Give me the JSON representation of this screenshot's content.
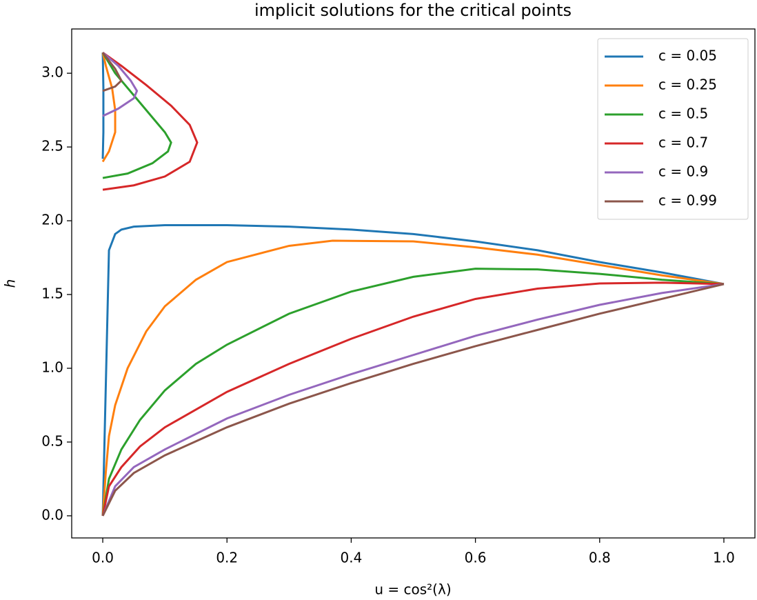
{
  "chart_data": {
    "type": "line",
    "title": "implicit solutions for the critical points",
    "x_label": "u = cos²(λ)",
    "y_label": "h",
    "xlim": [
      -0.05,
      1.05
    ],
    "ylim": [
      -0.15,
      3.3
    ],
    "xticks": [
      {
        "value": 0,
        "label": "0.0"
      },
      0.2,
      0.4,
      0.6,
      0.8,
      {
        "value": 1,
        "label": "1.0"
      }
    ],
    "yticks": [
      {
        "value": 0,
        "label": "0.0"
      },
      0.5,
      {
        "value": 1,
        "label": "1.0"
      },
      1.5,
      {
        "value": 2,
        "label": "2.0"
      },
      2.5,
      {
        "value": 3,
        "label": "3.0"
      }
    ],
    "grid": false,
    "legend": "upper right",
    "series": [
      {
        "name": "c = 0.05",
        "color": "#1f77b4",
        "x": [
          0,
          0.01,
          0.02,
          0.03,
          0.05,
          0.1,
          0.2,
          0.3,
          0.4,
          0.5,
          0.6,
          0.7,
          0.8,
          0.9,
          1.0,
          null,
          0,
          0.001,
          0.001,
          0
        ],
        "values": [
          0,
          1.8,
          1.91,
          1.94,
          1.96,
          1.97,
          1.97,
          1.96,
          1.94,
          1.91,
          1.86,
          1.8,
          1.72,
          1.65,
          1.571,
          null,
          3.14,
          2.9,
          2.6,
          2.42
        ]
      },
      {
        "name": "c = 0.25",
        "color": "#ff7f0e",
        "x": [
          0,
          0.005,
          0.01,
          0.02,
          0.04,
          0.07,
          0.1,
          0.15,
          0.2,
          0.3,
          0.37,
          0.5,
          0.6,
          0.7,
          0.8,
          0.9,
          1.0,
          null,
          0,
          0.01,
          0.02,
          0.02,
          0.015,
          0.005,
          0
        ],
        "values": [
          0,
          0.3,
          0.54,
          0.75,
          1.0,
          1.25,
          1.42,
          1.6,
          1.72,
          1.83,
          1.865,
          1.86,
          1.82,
          1.77,
          1.7,
          1.63,
          1.571,
          null,
          2.4,
          2.47,
          2.6,
          2.75,
          2.9,
          3.05,
          3.14
        ]
      },
      {
        "name": "c = 0.5",
        "color": "#2ca02c",
        "x": [
          0,
          0.01,
          0.03,
          0.06,
          0.1,
          0.15,
          0.2,
          0.3,
          0.4,
          0.5,
          0.6,
          0.7,
          0.8,
          0.9,
          1.0,
          null,
          0,
          0.04,
          0.08,
          0.105,
          0.11,
          0.1,
          0.08,
          0.05,
          0.02,
          0
        ],
        "values": [
          0,
          0.25,
          0.45,
          0.65,
          0.85,
          1.03,
          1.16,
          1.37,
          1.52,
          1.62,
          1.675,
          1.67,
          1.64,
          1.6,
          1.571,
          null,
          2.29,
          2.32,
          2.39,
          2.47,
          2.53,
          2.6,
          2.7,
          2.85,
          3.0,
          3.14
        ]
      },
      {
        "name": "c = 0.7",
        "color": "#d62728",
        "x": [
          0,
          0.01,
          0.03,
          0.06,
          0.1,
          0.2,
          0.3,
          0.4,
          0.5,
          0.6,
          0.7,
          0.8,
          0.9,
          1.0,
          null,
          0,
          0.05,
          0.1,
          0.14,
          0.152,
          0.14,
          0.11,
          0.07,
          0.03,
          0
        ],
        "values": [
          0,
          0.2,
          0.33,
          0.47,
          0.6,
          0.84,
          1.03,
          1.2,
          1.35,
          1.47,
          1.54,
          1.575,
          1.58,
          1.571,
          null,
          2.21,
          2.24,
          2.3,
          2.4,
          2.53,
          2.65,
          2.78,
          2.92,
          3.05,
          3.14
        ]
      },
      {
        "name": "c = 0.9",
        "color": "#9467bd",
        "x": [
          0,
          0.02,
          0.05,
          0.1,
          0.2,
          0.3,
          0.4,
          0.5,
          0.6,
          0.7,
          0.8,
          0.9,
          1.0,
          null,
          0,
          0.025,
          0.05,
          0.055,
          0.045,
          0.025,
          0
        ],
        "values": [
          0,
          0.2,
          0.33,
          0.45,
          0.66,
          0.82,
          0.96,
          1.09,
          1.22,
          1.33,
          1.43,
          1.51,
          1.571,
          null,
          2.71,
          2.76,
          2.83,
          2.88,
          2.95,
          3.05,
          3.14
        ]
      },
      {
        "name": "c = 0.99",
        "color": "#8c564b",
        "x": [
          0,
          0.02,
          0.05,
          0.1,
          0.2,
          0.3,
          0.4,
          0.5,
          0.6,
          0.7,
          0.8,
          0.9,
          1.0,
          null,
          0,
          0.02,
          0.03,
          0.02,
          0
        ],
        "values": [
          0,
          0.17,
          0.29,
          0.41,
          0.6,
          0.76,
          0.9,
          1.03,
          1.15,
          1.26,
          1.37,
          1.47,
          1.571,
          null,
          2.88,
          2.91,
          2.95,
          3.03,
          3.14
        ]
      }
    ]
  }
}
